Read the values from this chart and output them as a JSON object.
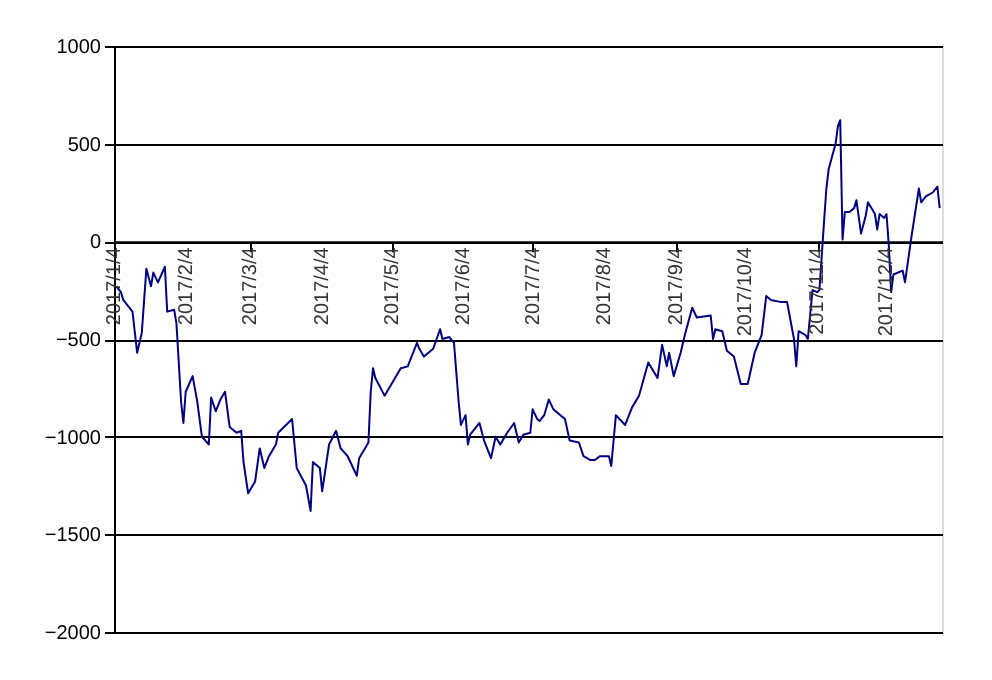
{
  "chart_data": {
    "type": "line",
    "x": [
      "2017-01-05",
      "2017-01-07",
      "2017-01-08",
      "2017-01-12",
      "2017-01-14",
      "2017-01-16",
      "2017-01-18",
      "2017-01-20",
      "2017-01-21",
      "2017-01-23",
      "2017-01-26",
      "2017-01-27",
      "2017-01-30",
      "2017-01-31",
      "2017-02-02",
      "2017-02-03",
      "2017-02-04",
      "2017-02-07",
      "2017-02-09",
      "2017-02-11",
      "2017-02-14",
      "2017-02-15",
      "2017-02-17",
      "2017-02-19",
      "2017-02-21",
      "2017-02-23",
      "2017-02-26",
      "2017-02-28",
      "2017-03-01",
      "2017-03-03",
      "2017-03-06",
      "2017-03-08",
      "2017-03-10",
      "2017-03-12",
      "2017-03-15",
      "2017-03-16",
      "2017-03-22",
      "2017-03-24",
      "2017-03-28",
      "2017-03-30",
      "2017-03-31",
      "2017-04-03",
      "2017-04-04",
      "2017-04-07",
      "2017-04-10",
      "2017-04-12",
      "2017-04-15",
      "2017-04-19",
      "2017-04-20",
      "2017-04-24",
      "2017-04-25",
      "2017-04-26",
      "2017-04-27",
      "2017-05-01",
      "2017-05-08",
      "2017-05-11",
      "2017-05-15",
      "2017-05-16",
      "2017-05-18",
      "2017-05-22",
      "2017-05-25",
      "2017-05-26",
      "2017-05-29",
      "2017-05-31",
      "2017-06-02",
      "2017-06-03",
      "2017-06-05",
      "2017-06-06",
      "2017-06-07",
      "2017-06-11",
      "2017-06-13",
      "2017-06-16",
      "2017-06-18",
      "2017-06-20",
      "2017-06-23",
      "2017-06-26",
      "2017-06-28",
      "2017-06-30",
      "2017-07-03",
      "2017-07-04",
      "2017-07-06",
      "2017-07-07",
      "2017-07-09",
      "2017-07-11",
      "2017-07-13",
      "2017-07-16",
      "2017-07-18",
      "2017-07-20",
      "2017-07-24",
      "2017-07-26",
      "2017-07-29",
      "2017-07-31",
      "2017-08-02",
      "2017-08-06",
      "2017-08-07",
      "2017-08-09",
      "2017-08-13",
      "2017-08-16",
      "2017-08-19",
      "2017-08-23",
      "2017-08-27",
      "2017-08-29",
      "2017-08-31",
      "2017-09-01",
      "2017-09-03",
      "2017-09-06",
      "2017-09-08",
      "2017-09-11",
      "2017-09-13",
      "2017-09-19",
      "2017-09-20",
      "2017-09-21",
      "2017-09-24",
      "2017-09-26",
      "2017-09-29",
      "2017-10-02",
      "2017-10-05",
      "2017-10-08",
      "2017-10-11",
      "2017-10-13",
      "2017-10-15",
      "2017-10-19",
      "2017-10-22",
      "2017-10-25",
      "2017-10-26",
      "2017-10-27",
      "2017-10-30",
      "2017-10-31",
      "2017-11-02",
      "2017-11-04",
      "2017-11-05",
      "2017-11-07",
      "2017-11-08",
      "2017-11-09",
      "2017-11-12",
      "2017-11-13",
      "2017-11-14",
      "2017-11-15",
      "2017-11-16",
      "2017-11-18",
      "2017-11-20",
      "2017-11-21",
      "2017-11-23",
      "2017-11-25",
      "2017-11-26",
      "2017-11-29",
      "2017-11-30",
      "2017-12-01",
      "2017-12-03",
      "2017-12-04",
      "2017-12-05",
      "2017-12-06",
      "2017-12-07",
      "2017-12-11",
      "2017-12-12",
      "2017-12-15",
      "2017-12-18",
      "2017-12-19",
      "2017-12-21",
      "2017-12-24",
      "2017-12-26",
      "2017-12-27"
    ],
    "series": [
      {
        "color": "#000080",
        "values": [
          -230,
          -260,
          -300,
          -360,
          -570,
          -470,
          -140,
          -230,
          -160,
          -210,
          -130,
          -360,
          -350,
          -420,
          -820,
          -930,
          -770,
          -690,
          -820,
          -1000,
          -1040,
          -800,
          -870,
          -810,
          -770,
          -950,
          -980,
          -970,
          -1130,
          -1290,
          -1230,
          -1060,
          -1160,
          -1100,
          -1040,
          -980,
          -910,
          -1160,
          -1250,
          -1380,
          -1130,
          -1160,
          -1280,
          -1040,
          -970,
          -1060,
          -1100,
          -1200,
          -1110,
          -1030,
          -770,
          -650,
          -700,
          -790,
          -650,
          -640,
          -520,
          -550,
          -590,
          -550,
          -450,
          -500,
          -490,
          -520,
          -820,
          -940,
          -890,
          -1040,
          -990,
          -930,
          -1020,
          -1110,
          -1000,
          -1040,
          -980,
          -930,
          -1030,
          -990,
          -980,
          -860,
          -910,
          -920,
          -890,
          -810,
          -860,
          -890,
          -910,
          -1020,
          -1030,
          -1100,
          -1120,
          -1120,
          -1100,
          -1100,
          -1150,
          -890,
          -940,
          -850,
          -790,
          -620,
          -700,
          -530,
          -640,
          -570,
          -690,
          -570,
          -470,
          -340,
          -390,
          -380,
          -500,
          -450,
          -460,
          -560,
          -590,
          -730,
          -730,
          -570,
          -480,
          -280,
          -300,
          -310,
          -310,
          -500,
          -640,
          -460,
          -480,
          -500,
          -250,
          -260,
          -250,
          100,
          270,
          370,
          500,
          590,
          620,
          10,
          150,
          150,
          170,
          210,
          40,
          130,
          200,
          140,
          60,
          140,
          120,
          140,
          -20,
          -260,
          -170,
          -150,
          -210,
          40,
          270,
          200,
          230,
          250,
          280,
          170
        ]
      }
    ],
    "xlim": [
      "2017-01-04",
      "2017-12-28"
    ],
    "xticks": [
      {
        "value": "2017-01-04",
        "label": "2017/1/4"
      },
      {
        "value": "2017-02-04",
        "label": "2017/2/4"
      },
      {
        "value": "2017-03-04",
        "label": "2017/3/4"
      },
      {
        "value": "2017-04-04",
        "label": "2017/4/4"
      },
      {
        "value": "2017-05-04",
        "label": "2017/5/4"
      },
      {
        "value": "2017-06-04",
        "label": "2017/6/4"
      },
      {
        "value": "2017-07-04",
        "label": "2017/7/4"
      },
      {
        "value": "2017-08-04",
        "label": "2017/8/4"
      },
      {
        "value": "2017-09-04",
        "label": "2017/9/4"
      },
      {
        "value": "2017-10-04",
        "label": "2017/10/4"
      },
      {
        "value": "2017-11-04",
        "label": "2017/11/4"
      },
      {
        "value": "2017-12-04",
        "label": "2017/12/4"
      }
    ],
    "ylim": [
      -2000,
      1000
    ],
    "yticks": [
      -2000,
      -1500,
      -1000,
      -500,
      0,
      500,
      1000
    ],
    "grid": "y",
    "line_style": "solid",
    "marker": "none"
  }
}
